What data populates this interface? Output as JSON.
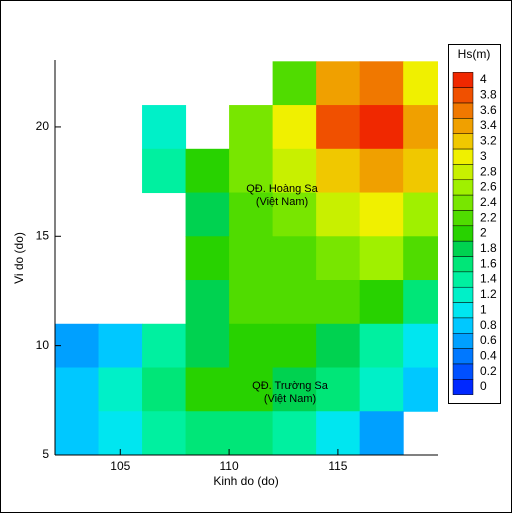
{
  "chart_data": {
    "type": "heatmap",
    "xlabel": "Kinh do (do)",
    "ylabel": "Vi do (do)",
    "xlim": [
      102,
      119.6
    ],
    "ylim": [
      5,
      23.06
    ],
    "xticks": [
      105,
      110,
      115
    ],
    "yticks": [
      5,
      10,
      15,
      20
    ],
    "x": [
      103,
      105,
      107,
      109,
      111,
      113,
      115,
      117,
      119
    ],
    "y": [
      22,
      20,
      18,
      16,
      14,
      12,
      10,
      8,
      6
    ],
    "values": [
      [
        null,
        null,
        null,
        null,
        null,
        2.2,
        3.4,
        3.6,
        3.0
      ],
      [
        null,
        null,
        1.2,
        null,
        2.4,
        3.0,
        3.8,
        4.0,
        3.4
      ],
      [
        null,
        null,
        1.4,
        2.0,
        2.4,
        2.8,
        3.2,
        3.4,
        3.2
      ],
      [
        null,
        null,
        null,
        1.8,
        2.2,
        2.4,
        2.8,
        3.0,
        2.6
      ],
      [
        null,
        null,
        null,
        2.0,
        2.2,
        2.2,
        2.4,
        2.6,
        2.2
      ],
      [
        null,
        null,
        null,
        1.8,
        2.2,
        2.2,
        2.2,
        2.0,
        1.6
      ],
      [
        0.6,
        0.8,
        1.4,
        1.8,
        2.0,
        2.0,
        1.8,
        1.4,
        1.0
      ],
      [
        0.8,
        1.2,
        1.6,
        2.0,
        2.0,
        1.8,
        1.6,
        1.2,
        0.8
      ],
      [
        0.8,
        1.0,
        1.4,
        1.6,
        1.6,
        1.4,
        1.0,
        0.6,
        null
      ]
    ],
    "annotations": [
      "QĐ. Hoàng Sa",
      "(Việt Nam)",
      "QĐ. Trường Sa",
      "(Việt Nam)"
    ],
    "colorbar": {
      "title": "Hs(m)",
      "ticks": [
        4,
        3.8,
        3.6,
        3.4,
        3.2,
        3,
        2.8,
        2.6,
        2.4,
        2.2,
        2,
        1.8,
        1.6,
        1.4,
        1.2,
        1,
        0.8,
        0.6,
        0.4,
        0.2,
        0
      ],
      "colors": [
        "#f02800",
        "#f05000",
        "#f07800",
        "#f0a000",
        "#f0c800",
        "#f0f000",
        "#c8f000",
        "#a0f000",
        "#78e600",
        "#50dc00",
        "#28d200",
        "#00d250",
        "#00e678",
        "#00f0a0",
        "#00f0c8",
        "#00e6f0",
        "#00c8ff",
        "#00a0ff",
        "#0078ff",
        "#0050ff",
        "#0028ff"
      ]
    }
  }
}
